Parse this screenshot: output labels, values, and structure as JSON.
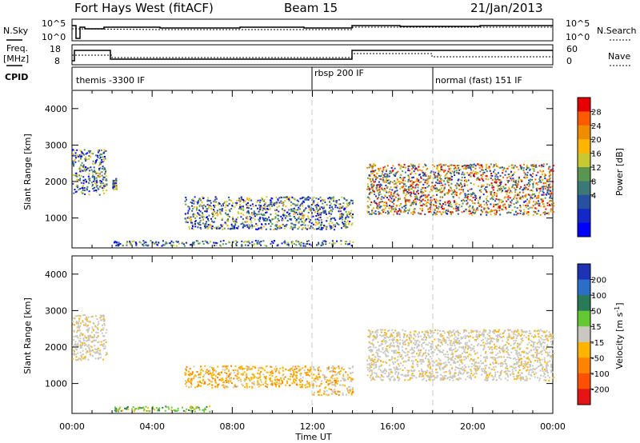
{
  "header": {
    "station": "Fort Hays West (fitACF)",
    "beam": "Beam 15",
    "date": "21/Jan/2013"
  },
  "left_labels": {
    "nsky": "N.Sky",
    "freq": "Freq.",
    "freq_unit": "[MHz]",
    "cpid": "CPID"
  },
  "right_labels": {
    "nsearch": "N.Search",
    "nave": "Nave"
  },
  "noise_panel": {
    "left_ticks": [
      "10^5",
      "10^0"
    ],
    "right_ticks": [
      "10^5",
      "10^0"
    ]
  },
  "freq_panel": {
    "left_ticks": [
      "18",
      "8"
    ],
    "right_ticks": [
      "60",
      "0"
    ]
  },
  "cpid": [
    {
      "label": "themis -3300 IF",
      "start_hour": 0
    },
    {
      "label": "rbsp 200 IF",
      "start_hour": 12
    },
    {
      "label": "normal (fast) 151 IF",
      "start_hour": 18
    }
  ],
  "colorbars": {
    "power": {
      "label": "Power [dB]",
      "ticks": [
        "28",
        "24",
        "20",
        "16",
        "12",
        "8",
        "4"
      ],
      "colors": [
        "#e60000",
        "#ff5a00",
        "#f08c00",
        "#ffb400",
        "#c8c832",
        "#5a9650",
        "#3c7878",
        "#2850a0",
        "#1428c8",
        "#0000ff"
      ]
    },
    "velocity": {
      "label": "Velocity [m s",
      "label_sup": "-1",
      "label_end": "]",
      "ticks": [
        "200",
        "100",
        "50",
        "15",
        "-15",
        "-50",
        "-100",
        "-200"
      ],
      "colors": [
        "#1e32b4",
        "#2a6ec8",
        "#2a7a5a",
        "#64c832",
        "#c8c8c0",
        "#ffb400",
        "#ff8200",
        "#ff5000",
        "#e61414"
      ]
    }
  },
  "chart_data": {
    "type": "heatmap",
    "xlabel": "Time UT",
    "ylabel": "Slant Range [km]",
    "x_ticks": [
      "00:00",
      "04:00",
      "08:00",
      "12:00",
      "16:00",
      "20:00",
      "00:00"
    ],
    "x_range_hours": [
      0,
      24
    ],
    "y_ticks": [
      1000,
      2000,
      3000,
      4000
    ],
    "y_range_km": [
      180,
      4500
    ],
    "cpid_change_hours": [
      12,
      18
    ],
    "power_regions": [
      {
        "t0": 0.0,
        "t1": 1.7,
        "r0": 1650,
        "r1": 2900,
        "level": "mid"
      },
      {
        "t0": 2.0,
        "t1": 2.2,
        "r0": 1800,
        "r1": 2100,
        "level": "mid"
      },
      {
        "t0": 5.6,
        "t1": 14.0,
        "r0": 700,
        "r1": 1600,
        "level": "mid"
      },
      {
        "t0": 14.7,
        "t1": 24.0,
        "r0": 1100,
        "r1": 2500,
        "level": "high"
      },
      {
        "t0": 2.0,
        "t1": 14.0,
        "r0": 250,
        "r1": 400,
        "level": "low"
      }
    ],
    "velocity_regions": [
      {
        "t0": 0.0,
        "t1": 1.7,
        "r0": 1650,
        "r1": 2900,
        "level": "grey"
      },
      {
        "t0": 5.6,
        "t1": 12.0,
        "r0": 900,
        "r1": 1500,
        "level": "orange"
      },
      {
        "t0": 12.0,
        "t1": 14.0,
        "r0": 700,
        "r1": 1500,
        "level": "mixed"
      },
      {
        "t0": 14.7,
        "t1": 24.0,
        "r0": 1100,
        "r1": 2500,
        "level": "grey"
      },
      {
        "t0": 2.0,
        "t1": 7.0,
        "r0": 250,
        "r1": 400,
        "level": "green"
      }
    ]
  }
}
